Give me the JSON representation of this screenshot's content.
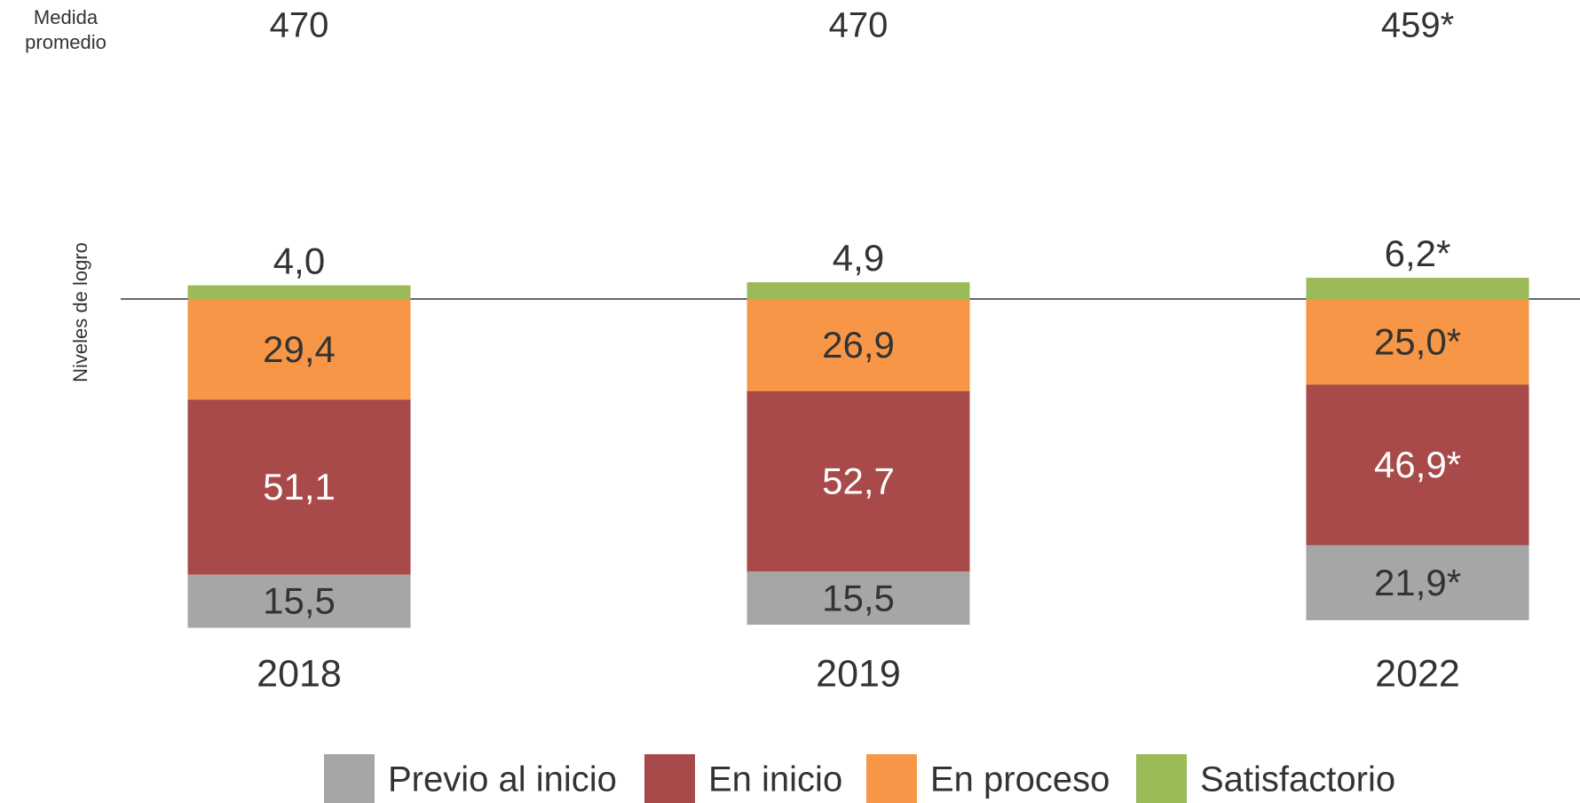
{
  "chart_data": {
    "type": "bar",
    "stacked": true,
    "mean_label": "Medida promedio",
    "mean_scores": [
      "470",
      "470",
      "459*"
    ],
    "ylabel": "Niveles de logro",
    "categories": [
      "2018",
      "2019",
      "2022"
    ],
    "series": [
      {
        "name": "Previo al inicio",
        "color": "#a6a6a6",
        "values": [
          15.5,
          15.5,
          21.9
        ],
        "value_labels": [
          "15,5",
          "15,5",
          "21,9*"
        ]
      },
      {
        "name": "En inicio",
        "color": "#a84a4a",
        "values": [
          51.1,
          52.7,
          46.9
        ],
        "value_labels": [
          "51,1",
          "52,7",
          "46,9*"
        ]
      },
      {
        "name": "En proceso",
        "color": "#f79646",
        "values": [
          29.4,
          26.9,
          25.0
        ],
        "value_labels": [
          "29,4",
          "26,9",
          "25,0*"
        ]
      },
      {
        "name": "Satisfactorio",
        "color": "#9bbb59",
        "values": [
          4.0,
          4.9,
          6.2
        ],
        "value_labels": [
          "4,0",
          "4,9",
          "6,2*"
        ]
      }
    ]
  }
}
